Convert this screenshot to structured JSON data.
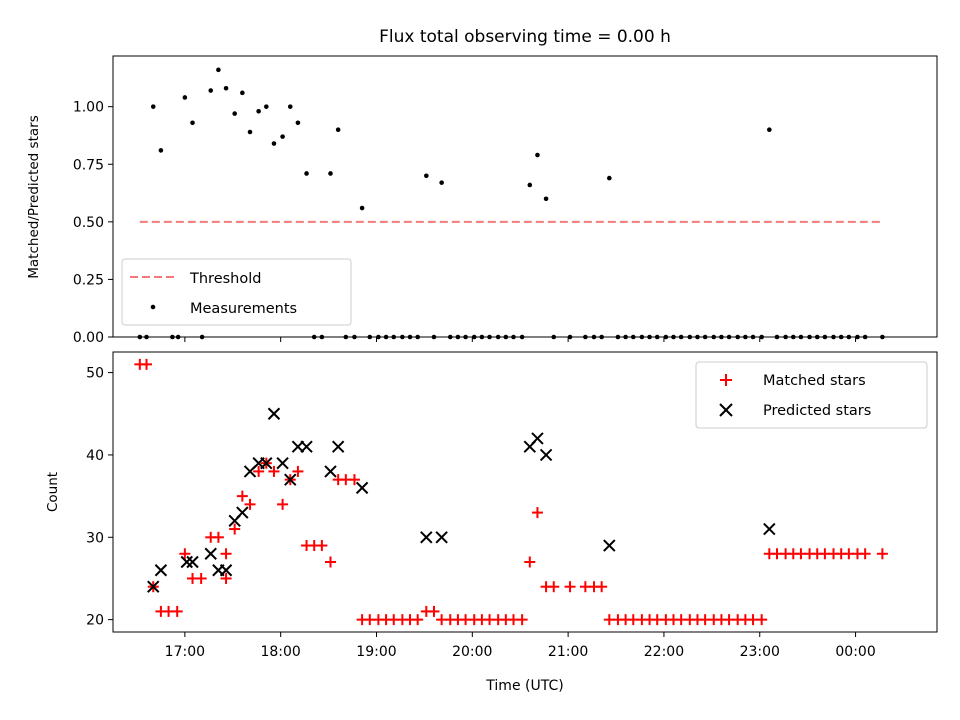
{
  "chart_data": [
    {
      "type": "scatter",
      "title": "Flux total observing time = 0.00 h",
      "xlabel": "",
      "ylabel": "Matched/Predicted stars",
      "x_unit": "hours (UTC, continuous past midnight)",
      "xlim": [
        16.25,
        24.85
      ],
      "ylim": [
        0.0,
        1.22
      ],
      "yticks": [
        "0.00",
        "0.25",
        "0.50",
        "0.75",
        "1.00"
      ],
      "legend_position": "lower-left",
      "threshold": {
        "name": "Threshold",
        "value": 0.5,
        "x_range": [
          16.53,
          24.28
        ],
        "color": "#f47a7a",
        "style": "dashed"
      },
      "series": [
        {
          "name": "Measurements",
          "color": "#000000",
          "marker": "dot",
          "points": [
            [
              16.53,
              0
            ],
            [
              16.6,
              0
            ],
            [
              16.67,
              1.0
            ],
            [
              16.75,
              0.81
            ],
            [
              16.87,
              0
            ],
            [
              16.93,
              0
            ],
            [
              17.0,
              1.04
            ],
            [
              17.08,
              0.93
            ],
            [
              17.18,
              0
            ],
            [
              17.27,
              1.07
            ],
            [
              17.35,
              1.16
            ],
            [
              17.43,
              1.08
            ],
            [
              17.52,
              0.97
            ],
            [
              17.6,
              1.06
            ],
            [
              17.68,
              0.89
            ],
            [
              17.77,
              0.98
            ],
            [
              17.85,
              1.0
            ],
            [
              17.93,
              0.84
            ],
            [
              18.02,
              0.87
            ],
            [
              18.1,
              1.0
            ],
            [
              18.18,
              0.93
            ],
            [
              18.27,
              0.71
            ],
            [
              18.35,
              0
            ],
            [
              18.43,
              0
            ],
            [
              18.52,
              0.71
            ],
            [
              18.6,
              0.9
            ],
            [
              18.68,
              0
            ],
            [
              18.77,
              0
            ],
            [
              18.85,
              0.56
            ],
            [
              18.93,
              0
            ],
            [
              19.02,
              0
            ],
            [
              19.1,
              0
            ],
            [
              19.18,
              0
            ],
            [
              19.27,
              0
            ],
            [
              19.35,
              0
            ],
            [
              19.43,
              0
            ],
            [
              19.52,
              0.7
            ],
            [
              19.6,
              0
            ],
            [
              19.68,
              0.67
            ],
            [
              19.77,
              0
            ],
            [
              19.85,
              0
            ],
            [
              19.93,
              0
            ],
            [
              20.02,
              0
            ],
            [
              20.1,
              0
            ],
            [
              20.18,
              0
            ],
            [
              20.27,
              0
            ],
            [
              20.35,
              0
            ],
            [
              20.43,
              0
            ],
            [
              20.52,
              0
            ],
            [
              20.6,
              0.66
            ],
            [
              20.68,
              0.79
            ],
            [
              20.77,
              0.6
            ],
            [
              20.85,
              0
            ],
            [
              21.02,
              0
            ],
            [
              21.18,
              0
            ],
            [
              21.27,
              0
            ],
            [
              21.35,
              0
            ],
            [
              21.43,
              0.69
            ],
            [
              21.52,
              0
            ],
            [
              21.6,
              0
            ],
            [
              21.68,
              0
            ],
            [
              21.77,
              0
            ],
            [
              21.85,
              0
            ],
            [
              21.93,
              0
            ],
            [
              22.02,
              0
            ],
            [
              22.1,
              0
            ],
            [
              22.18,
              0
            ],
            [
              22.27,
              0
            ],
            [
              22.35,
              0
            ],
            [
              22.43,
              0
            ],
            [
              22.52,
              0
            ],
            [
              22.6,
              0
            ],
            [
              22.68,
              0
            ],
            [
              22.77,
              0
            ],
            [
              22.85,
              0
            ],
            [
              22.93,
              0
            ],
            [
              23.02,
              0
            ],
            [
              23.1,
              0.9
            ],
            [
              23.18,
              0
            ],
            [
              23.27,
              0
            ],
            [
              23.35,
              0
            ],
            [
              23.43,
              0
            ],
            [
              23.52,
              0
            ],
            [
              23.6,
              0
            ],
            [
              23.68,
              0
            ],
            [
              23.77,
              0
            ],
            [
              23.85,
              0
            ],
            [
              23.93,
              0
            ],
            [
              24.02,
              0
            ],
            [
              24.1,
              0
            ],
            [
              24.28,
              0
            ]
          ]
        }
      ]
    },
    {
      "type": "scatter",
      "title": "",
      "xlabel": "Time (UTC)",
      "ylabel": "Count",
      "x_unit": "hours (UTC, continuous past midnight)",
      "xlim": [
        16.25,
        24.85
      ],
      "ylim": [
        18.5,
        52.5
      ],
      "yticks": [
        "20",
        "30",
        "40",
        "50"
      ],
      "xticks": [
        {
          "value": 17,
          "label": "17:00"
        },
        {
          "value": 18,
          "label": "18:00"
        },
        {
          "value": 19,
          "label": "19:00"
        },
        {
          "value": 20,
          "label": "20:00"
        },
        {
          "value": 21,
          "label": "21:00"
        },
        {
          "value": 22,
          "label": "22:00"
        },
        {
          "value": 23,
          "label": "23:00"
        },
        {
          "value": 24,
          "label": "00:00"
        }
      ],
      "legend_position": "top-right",
      "series": [
        {
          "name": "Matched stars",
          "color": "#ff0000",
          "marker": "plus",
          "points": [
            [
              16.53,
              51
            ],
            [
              16.6,
              51
            ],
            [
              16.67,
              24
            ],
            [
              16.75,
              21
            ],
            [
              16.83,
              21
            ],
            [
              16.92,
              21
            ],
            [
              17.0,
              28
            ],
            [
              17.08,
              25
            ],
            [
              17.17,
              25
            ],
            [
              17.27,
              30
            ],
            [
              17.35,
              30
            ],
            [
              17.43,
              28
            ],
            [
              17.43,
              25
            ],
            [
              17.52,
              31
            ],
            [
              17.6,
              35
            ],
            [
              17.68,
              34
            ],
            [
              17.77,
              38
            ],
            [
              17.85,
              39
            ],
            [
              17.93,
              38
            ],
            [
              18.02,
              34
            ],
            [
              18.1,
              37
            ],
            [
              18.18,
              38
            ],
            [
              18.27,
              29
            ],
            [
              18.35,
              29
            ],
            [
              18.43,
              29
            ],
            [
              18.52,
              27
            ],
            [
              18.6,
              37
            ],
            [
              18.68,
              37
            ],
            [
              18.77,
              37
            ],
            [
              18.85,
              20
            ],
            [
              18.93,
              20
            ],
            [
              19.02,
              20
            ],
            [
              19.1,
              20
            ],
            [
              19.18,
              20
            ],
            [
              19.27,
              20
            ],
            [
              19.35,
              20
            ],
            [
              19.43,
              20
            ],
            [
              19.52,
              21
            ],
            [
              19.6,
              21
            ],
            [
              19.68,
              20
            ],
            [
              19.77,
              20
            ],
            [
              19.85,
              20
            ],
            [
              19.93,
              20
            ],
            [
              20.02,
              20
            ],
            [
              20.1,
              20
            ],
            [
              20.18,
              20
            ],
            [
              20.27,
              20
            ],
            [
              20.35,
              20
            ],
            [
              20.43,
              20
            ],
            [
              20.52,
              20
            ],
            [
              20.6,
              27
            ],
            [
              20.68,
              33
            ],
            [
              20.77,
              24
            ],
            [
              20.85,
              24
            ],
            [
              21.02,
              24
            ],
            [
              21.18,
              24
            ],
            [
              21.27,
              24
            ],
            [
              21.35,
              24
            ],
            [
              21.43,
              20
            ],
            [
              21.52,
              20
            ],
            [
              21.6,
              20
            ],
            [
              21.68,
              20
            ],
            [
              21.77,
              20
            ],
            [
              21.85,
              20
            ],
            [
              21.93,
              20
            ],
            [
              22.02,
              20
            ],
            [
              22.1,
              20
            ],
            [
              22.18,
              20
            ],
            [
              22.27,
              20
            ],
            [
              22.35,
              20
            ],
            [
              22.43,
              20
            ],
            [
              22.52,
              20
            ],
            [
              22.6,
              20
            ],
            [
              22.68,
              20
            ],
            [
              22.77,
              20
            ],
            [
              22.85,
              20
            ],
            [
              22.93,
              20
            ],
            [
              23.02,
              20
            ],
            [
              23.1,
              28
            ],
            [
              23.18,
              28
            ],
            [
              23.27,
              28
            ],
            [
              23.35,
              28
            ],
            [
              23.43,
              28
            ],
            [
              23.52,
              28
            ],
            [
              23.6,
              28
            ],
            [
              23.68,
              28
            ],
            [
              23.77,
              28
            ],
            [
              23.85,
              28
            ],
            [
              23.93,
              28
            ],
            [
              24.02,
              28
            ],
            [
              24.1,
              28
            ],
            [
              24.28,
              28
            ]
          ]
        },
        {
          "name": "Predicted stars",
          "color": "#000000",
          "marker": "x",
          "points": [
            [
              16.67,
              24
            ],
            [
              16.75,
              26
            ],
            [
              17.02,
              27
            ],
            [
              17.08,
              27
            ],
            [
              17.27,
              28
            ],
            [
              17.35,
              26
            ],
            [
              17.43,
              26
            ],
            [
              17.52,
              32
            ],
            [
              17.6,
              33
            ],
            [
              17.68,
              38
            ],
            [
              17.77,
              39
            ],
            [
              17.85,
              39
            ],
            [
              17.93,
              45
            ],
            [
              18.02,
              39
            ],
            [
              18.1,
              37
            ],
            [
              18.18,
              41
            ],
            [
              18.27,
              41
            ],
            [
              18.52,
              38
            ],
            [
              18.6,
              41
            ],
            [
              18.85,
              36
            ],
            [
              19.52,
              30
            ],
            [
              19.68,
              30
            ],
            [
              20.6,
              41
            ],
            [
              20.68,
              42
            ],
            [
              20.77,
              40
            ],
            [
              21.43,
              29
            ],
            [
              23.1,
              31
            ]
          ]
        }
      ]
    }
  ]
}
